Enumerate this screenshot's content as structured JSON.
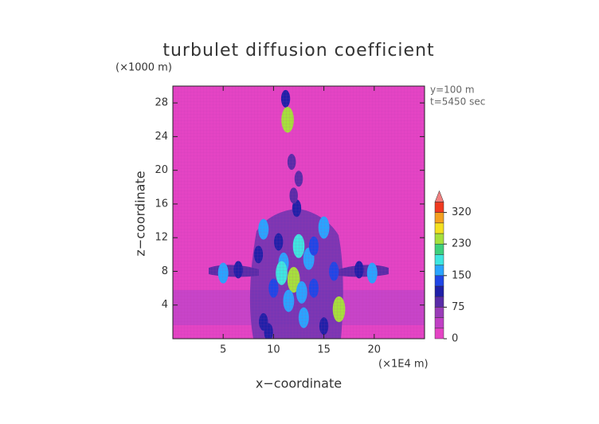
{
  "chart_data": {
    "type": "contour",
    "title": "turbulet diffusion coefficient",
    "y_unit_label": "(×1000 m)",
    "x_unit_label": "(×1E4 m)",
    "xlabel": "x−coordinate",
    "ylabel": "z−coordinate",
    "annotations": [
      "y=100 m",
      "t=5450 sec"
    ],
    "xlim": [
      0,
      25
    ],
    "ylim": [
      0,
      30
    ],
    "xticks": [
      5,
      10,
      15,
      20
    ],
    "yticks": [
      4,
      8,
      12,
      16,
      20,
      24,
      28
    ],
    "colorbar": {
      "levels": [
        0,
        25,
        50,
        75,
        100,
        125,
        150,
        177,
        203,
        230,
        260,
        290,
        320,
        350
      ],
      "colors": [
        "#e444c4",
        "#c040c4",
        "#9a3cb8",
        "#5a2ca8",
        "#2020a8",
        "#2046e6",
        "#2aa4ff",
        "#3ee6e0",
        "#3ed07c",
        "#a6e03c",
        "#f4e020",
        "#f4a020",
        "#f03a20"
      ],
      "extend_color": "#f08080",
      "ticks": [
        0,
        75,
        150,
        230,
        320
      ]
    },
    "x": [
      5,
      6.5,
      18.5,
      19.8,
      9,
      15,
      12.5,
      11,
      13.5,
      12,
      10,
      14,
      11.5,
      16.5,
      9,
      9.5,
      15,
      13,
      10.5,
      14,
      12.3,
      12,
      12.5,
      11.8,
      11.2,
      11.4,
      8.5,
      16,
      12.8,
      10.8
    ],
    "z": [
      7.8,
      8.2,
      8.2,
      7.8,
      13,
      13.2,
      11,
      9,
      9.5,
      7,
      6,
      6,
      4.5,
      3.5,
      2,
      0.8,
      1.5,
      2.5,
      11.5,
      11,
      15.5,
      17,
      19,
      21,
      28.5,
      26,
      10,
      8,
      5.5,
      7.8
    ],
    "values": [
      150,
      100,
      100,
      150,
      150,
      175,
      200,
      150,
      175,
      230,
      125,
      125,
      175,
      230,
      100,
      100,
      100,
      150,
      100,
      125,
      100,
      75,
      75,
      75,
      100,
      230,
      100,
      125,
      175,
      200
    ]
  }
}
